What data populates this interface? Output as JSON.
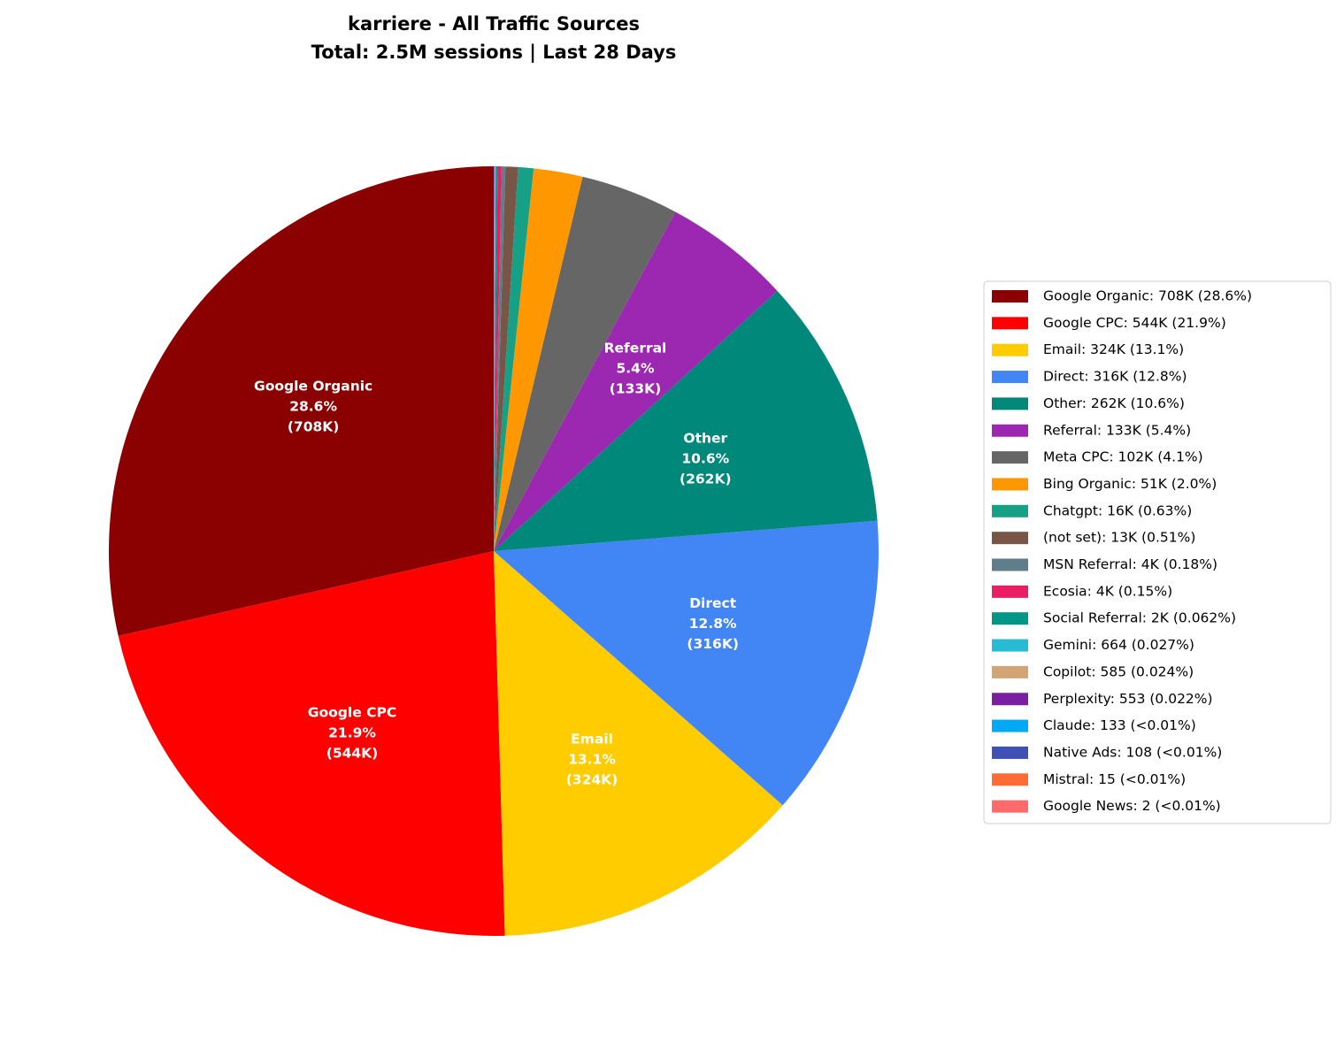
{
  "chart_data": {
    "type": "pie",
    "title": "karriere - All Traffic Sources",
    "subtitle": "Total: 2.5M sessions | Last 28 Days",
    "categories": [
      "Google Organic",
      "Google CPC",
      "Email",
      "Direct",
      "Other",
      "Referral",
      "Meta CPC",
      "Bing Organic",
      "Chatgpt",
      "(not set)",
      "MSN Referral",
      "Ecosia",
      "Social Referral",
      "Gemini",
      "Copilot",
      "Perplexity",
      "Claude",
      "Native Ads",
      "Mistral",
      "Google News"
    ],
    "values": [
      708000,
      544000,
      324000,
      316000,
      262000,
      133000,
      102000,
      51000,
      16000,
      13000,
      4000,
      4000,
      2000,
      664,
      585,
      553,
      133,
      108,
      15,
      2
    ],
    "colors": [
      "#8b0000",
      "#ff0000",
      "#ffcc00",
      "#4285f4",
      "#00897b",
      "#9c27b0",
      "#666666",
      "#ff9800",
      "#16a085",
      "#795548",
      "#607d8b",
      "#e91e63",
      "#009688",
      "#26bcd4",
      "#d4a574",
      "#7b1fa2",
      "#03a9f4",
      "#3f51b5",
      "#ff6b35",
      "#ff6b6b"
    ],
    "legend_labels": [
      "Google Organic: 708K (28.6%)",
      "Google CPC: 544K (21.9%)",
      "Email: 324K (13.1%)",
      "Direct: 316K (12.8%)",
      "Other: 262K (10.6%)",
      "Referral: 133K (5.4%)",
      "Meta CPC: 102K (4.1%)",
      "Bing Organic: 51K (2.0%)",
      "Chatgpt: 16K (0.63%)",
      "(not set): 13K (0.51%)",
      "MSN Referral: 4K (0.18%)",
      "Ecosia: 4K (0.15%)",
      "Social Referral: 2K (0.062%)",
      "Gemini: 664 (0.027%)",
      "Copilot: 585 (0.024%)",
      "Perplexity: 553 (0.022%)",
      "Claude: 133 (<0.01%)",
      "Native Ads: 108 (<0.01%)",
      "Mistral: 15 (<0.01%)",
      "Google News: 2 (<0.01%)"
    ],
    "slice_labels": [
      [
        "Google Organic",
        "28.6%",
        "(708K)"
      ],
      [
        "Google CPC",
        "21.9%",
        "(544K)"
      ],
      [
        "Email",
        "13.1%",
        "(324K)"
      ],
      [
        "Direct",
        "12.8%",
        "(316K)"
      ],
      [
        "Other",
        "10.6%",
        "(262K)"
      ],
      [
        "Referral",
        "5.4%",
        "(133K)"
      ],
      null,
      null,
      null,
      null,
      null,
      null,
      null,
      null,
      null,
      null,
      null,
      null,
      null,
      null
    ],
    "start_angle": 90,
    "counterclockwise": true,
    "legend": "right"
  }
}
